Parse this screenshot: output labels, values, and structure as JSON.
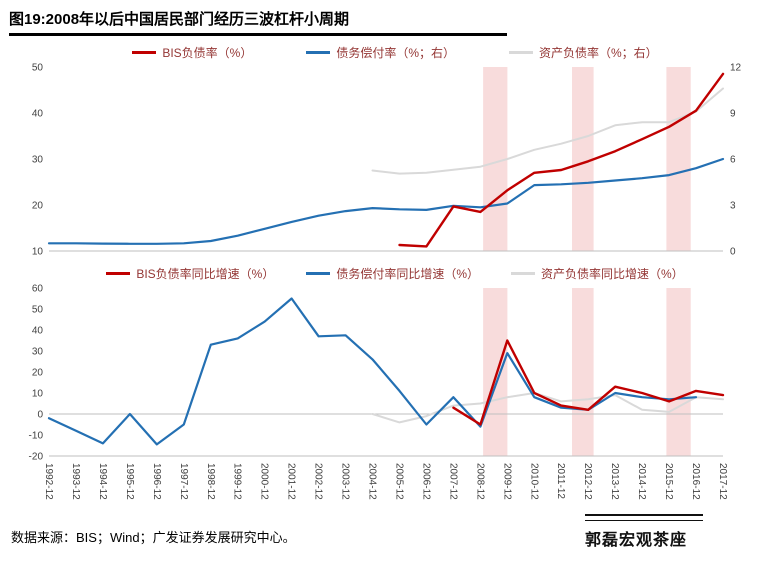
{
  "title": "图19:2008年以后中国居民部门经历三波杠杆小周期",
  "source": "数据来源：BIS；Wind；广发证券发展研究中心。",
  "stamp": "郭磊宏观茶座",
  "colors": {
    "red": "#c00000",
    "blue": "#2470b3",
    "gray": "#d9d9d9",
    "band": "#f2bfbf",
    "legend_text": "#943634",
    "tick_text": "#404040",
    "axis_line": "#bfbfbf"
  },
  "chart_data": {
    "categories": [
      "1992-12",
      "1993-12",
      "1994-12",
      "1995-12",
      "1996-12",
      "1997-12",
      "1998-12",
      "1999-12",
      "2000-12",
      "2001-12",
      "2002-12",
      "2003-12",
      "2004-12",
      "2005-12",
      "2006-12",
      "2007-12",
      "2008-12",
      "2009-12",
      "2010-12",
      "2011-12",
      "2012-12",
      "2013-12",
      "2014-12",
      "2015-12",
      "2016-12",
      "2017-12"
    ],
    "bands": [
      [
        16.1,
        17.0
      ],
      [
        19.4,
        20.2
      ],
      [
        22.9,
        23.8
      ]
    ],
    "charts": [
      {
        "type": "line",
        "left_axis": {
          "lim": [
            10,
            50
          ],
          "ticks": [
            10,
            20,
            30,
            40,
            50
          ]
        },
        "right_axis": {
          "lim": [
            0,
            12
          ],
          "ticks": [
            0,
            3,
            6,
            9,
            12
          ]
        },
        "baselines": [
          10
        ],
        "show_x_labels": false,
        "series": [
          {
            "key": "bis-debt-ratio",
            "name": "BIS负债率（%）",
            "color": "#c00000",
            "axis": "left",
            "width": 2.4,
            "values": [
              null,
              null,
              null,
              null,
              null,
              null,
              null,
              null,
              null,
              null,
              null,
              null,
              null,
              11.3,
              11.0,
              19.7,
              18.5,
              23.2,
              27.0,
              27.6,
              29.5,
              31.7,
              34.3,
              37.0,
              40.5,
              48.5
            ]
          },
          {
            "key": "debt-service-ratio",
            "name": "债务偿付率（%；右）",
            "color": "#2470b3",
            "axis": "right",
            "width": 2.2,
            "values": [
              0.5,
              0.5,
              0.48,
              0.47,
              0.47,
              0.5,
              0.65,
              1.0,
              1.45,
              1.9,
              2.3,
              2.6,
              2.8,
              2.72,
              2.68,
              2.95,
              2.85,
              3.1,
              4.3,
              4.35,
              4.45,
              4.6,
              4.75,
              4.95,
              5.4,
              6.0
            ]
          },
          {
            "key": "asset-liability-ratio",
            "name": "资产负债率（%；右）",
            "color": "#d9d9d9",
            "axis": "right",
            "width": 2,
            "values": [
              null,
              null,
              null,
              null,
              null,
              null,
              null,
              null,
              null,
              null,
              null,
              null,
              5.25,
              5.05,
              5.1,
              5.3,
              5.5,
              6.0,
              6.6,
              7.0,
              7.5,
              8.2,
              8.4,
              8.4,
              9.1,
              10.6
            ]
          }
        ]
      },
      {
        "type": "line",
        "left_axis": {
          "lim": [
            -20,
            60
          ],
          "ticks": [
            -20,
            -10,
            0,
            10,
            20,
            30,
            40,
            50,
            60
          ]
        },
        "baselines": [
          0,
          -20
        ],
        "show_x_labels": true,
        "series": [
          {
            "key": "bis-debt-ratio-yoy",
            "name": "BIS负债率同比增速（%）",
            "color": "#c00000",
            "axis": "left",
            "width": 2.4,
            "values": [
              null,
              null,
              null,
              null,
              null,
              null,
              null,
              null,
              null,
              null,
              null,
              null,
              null,
              null,
              null,
              3,
              -5,
              35,
              10,
              4,
              2,
              13,
              10,
              6,
              11,
              9
            ]
          },
          {
            "key": "debt-service-ratio-yoy",
            "name": "债务偿付率同比增速（%）",
            "color": "#2470b3",
            "axis": "left",
            "width": 2.2,
            "values": [
              -2,
              -8,
              -14,
              0,
              -14.5,
              -5,
              33,
              36,
              44,
              55,
              37,
              37.5,
              26,
              11,
              -5,
              8,
              -6,
              29,
              8,
              3,
              2,
              10,
              8,
              7,
              8,
              null
            ]
          },
          {
            "key": "asset-liability-ratio-yoy",
            "name": "资产负债率同比增速（%）",
            "color": "#d9d9d9",
            "axis": "left",
            "width": 2,
            "values": [
              null,
              null,
              null,
              null,
              null,
              null,
              null,
              null,
              null,
              null,
              null,
              null,
              0,
              -4,
              -1,
              4,
              5,
              8,
              10,
              6,
              7,
              9,
              2,
              1,
              8,
              7
            ]
          }
        ]
      }
    ]
  }
}
